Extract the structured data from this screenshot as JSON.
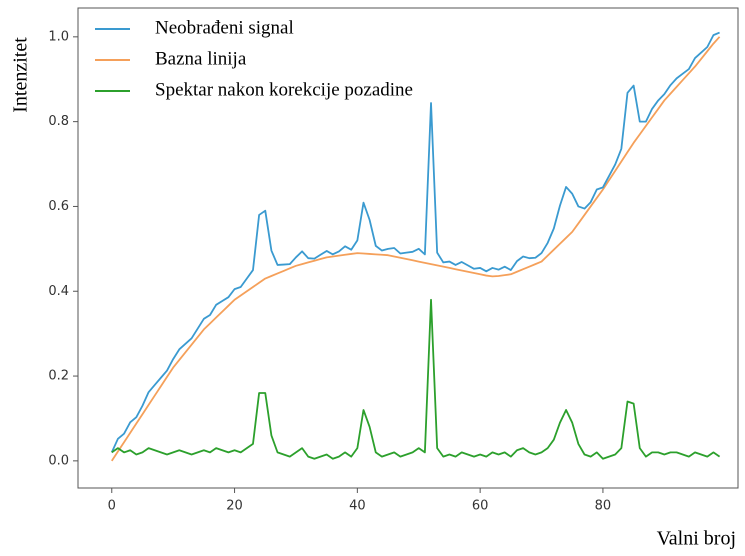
{
  "chart_data": {
    "type": "line",
    "xlabel": "Valni broj",
    "ylabel": "Intenzitet",
    "x": [
      0,
      1,
      2,
      3,
      4,
      5,
      6,
      7,
      8,
      9,
      10,
      11,
      12,
      13,
      14,
      15,
      16,
      17,
      18,
      19,
      20,
      21,
      22,
      23,
      24,
      25,
      26,
      27,
      28,
      29,
      30,
      31,
      32,
      33,
      34,
      35,
      36,
      37,
      38,
      39,
      40,
      41,
      42,
      43,
      44,
      45,
      46,
      47,
      48,
      49,
      50,
      51,
      52,
      53,
      54,
      55,
      56,
      57,
      58,
      59,
      60,
      61,
      62,
      63,
      64,
      65,
      66,
      67,
      68,
      69,
      70,
      71,
      72,
      73,
      74,
      75,
      76,
      77,
      78,
      79,
      80,
      81,
      82,
      83,
      84,
      85,
      86,
      87,
      88,
      89,
      90,
      91,
      92,
      93,
      94,
      95,
      96,
      97,
      98,
      99
    ],
    "series": [
      {
        "name": "Neobrađeni signal",
        "color": "#3a9ad0",
        "values": [
          0.02,
          0.052,
          0.064,
          0.091,
          0.103,
          0.13,
          0.162,
          0.179,
          0.196,
          0.213,
          0.24,
          0.263,
          0.276,
          0.289,
          0.312,
          0.335,
          0.344,
          0.368,
          0.377,
          0.386,
          0.405,
          0.41,
          0.43,
          0.45,
          0.58,
          0.59,
          0.496,
          0.462,
          0.463,
          0.464,
          0.48,
          0.494,
          0.478,
          0.477,
          0.486,
          0.495,
          0.487,
          0.494,
          0.506,
          0.498,
          0.52,
          0.609,
          0.568,
          0.507,
          0.496,
          0.5,
          0.502,
          0.489,
          0.491,
          0.493,
          0.5,
          0.487,
          0.844,
          0.491,
          0.468,
          0.47,
          0.462,
          0.469,
          0.461,
          0.453,
          0.455,
          0.447,
          0.455,
          0.451,
          0.458,
          0.45,
          0.471,
          0.482,
          0.478,
          0.479,
          0.49,
          0.514,
          0.548,
          0.602,
          0.646,
          0.63,
          0.6,
          0.595,
          0.61,
          0.64,
          0.645,
          0.672,
          0.699,
          0.736,
          0.868,
          0.885,
          0.8,
          0.8,
          0.83,
          0.85,
          0.865,
          0.886,
          0.902,
          0.913,
          0.924,
          0.95,
          0.963,
          0.976,
          1.004,
          1.01
        ]
      },
      {
        "name": "Bazna linija",
        "color": "#f5a05a",
        "values": [
          0.0,
          0.022,
          0.044,
          0.066,
          0.088,
          0.11,
          0.132,
          0.154,
          0.176,
          0.198,
          0.22,
          0.238,
          0.256,
          0.274,
          0.292,
          0.31,
          0.324,
          0.338,
          0.352,
          0.366,
          0.38,
          0.39,
          0.4,
          0.41,
          0.42,
          0.43,
          0.436,
          0.442,
          0.448,
          0.454,
          0.46,
          0.464,
          0.468,
          0.472,
          0.476,
          0.48,
          0.482,
          0.484,
          0.486,
          0.488,
          0.49,
          0.489,
          0.488,
          0.487,
          0.486,
          0.485,
          0.482,
          0.479,
          0.476,
          0.473,
          0.47,
          0.467,
          0.464,
          0.461,
          0.458,
          0.455,
          0.452,
          0.449,
          0.446,
          0.443,
          0.44,
          0.437,
          0.435,
          0.436,
          0.438,
          0.44,
          0.446,
          0.452,
          0.458,
          0.464,
          0.47,
          0.484,
          0.498,
          0.512,
          0.526,
          0.54,
          0.56,
          0.58,
          0.6,
          0.62,
          0.64,
          0.662,
          0.684,
          0.706,
          0.728,
          0.75,
          0.77,
          0.79,
          0.81,
          0.83,
          0.85,
          0.866,
          0.882,
          0.898,
          0.914,
          0.93,
          0.948,
          0.966,
          0.984,
          1.0
        ]
      },
      {
        "name": "Spektar nakon korekcije pozadine",
        "color": "#2ca02c",
        "values": [
          0.02,
          0.03,
          0.02,
          0.025,
          0.015,
          0.02,
          0.03,
          0.025,
          0.02,
          0.015,
          0.02,
          0.025,
          0.02,
          0.015,
          0.02,
          0.025,
          0.02,
          0.03,
          0.025,
          0.02,
          0.025,
          0.02,
          0.03,
          0.04,
          0.16,
          0.16,
          0.06,
          0.02,
          0.015,
          0.01,
          0.02,
          0.03,
          0.01,
          0.005,
          0.01,
          0.015,
          0.005,
          0.01,
          0.02,
          0.01,
          0.03,
          0.12,
          0.08,
          0.02,
          0.01,
          0.015,
          0.02,
          0.01,
          0.015,
          0.02,
          0.03,
          0.02,
          0.38,
          0.03,
          0.01,
          0.015,
          0.01,
          0.02,
          0.015,
          0.01,
          0.015,
          0.01,
          0.02,
          0.015,
          0.02,
          0.01,
          0.025,
          0.03,
          0.02,
          0.015,
          0.02,
          0.03,
          0.05,
          0.09,
          0.12,
          0.09,
          0.04,
          0.015,
          0.01,
          0.02,
          0.005,
          0.01,
          0.015,
          0.03,
          0.14,
          0.135,
          0.03,
          0.01,
          0.02,
          0.02,
          0.015,
          0.02,
          0.02,
          0.015,
          0.01,
          0.02,
          0.015,
          0.01,
          0.02,
          0.01
        ]
      }
    ],
    "xlim": [
      -5.5,
      102
    ],
    "ylim": [
      -0.064,
      1.068
    ],
    "xticks": [
      0,
      20,
      40,
      60,
      80
    ],
    "yticks": [
      {
        "value": 0,
        "label": "0.0"
      },
      0.2,
      0.4,
      0.6,
      0.8,
      {
        "value": 1,
        "label": "1.0"
      }
    ],
    "grid": false,
    "legend": "upper left"
  }
}
